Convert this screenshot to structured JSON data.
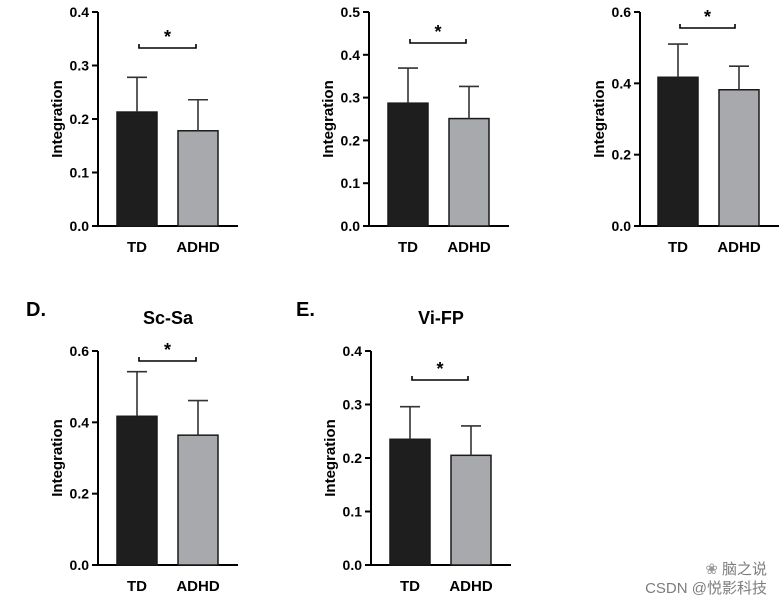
{
  "chart_data": [
    {
      "type": "bar",
      "panel": "",
      "title": "",
      "xlabel": "",
      "ylabel": "Integration",
      "categories": [
        "TD",
        "ADHD"
      ],
      "values": [
        0.213,
        0.178
      ],
      "errors": [
        0.065,
        0.058
      ],
      "ylim": [
        0,
        0.4
      ],
      "yticks": [
        "0.0",
        "0.1",
        "0.2",
        "0.3",
        "0.4"
      ],
      "significance": "*",
      "colors": [
        "#1e1e1e",
        "#a7a9ad"
      ]
    },
    {
      "type": "bar",
      "panel": "",
      "title": "",
      "xlabel": "",
      "ylabel": "Integration",
      "categories": [
        "TD",
        "ADHD"
      ],
      "values": [
        0.287,
        0.251
      ],
      "errors": [
        0.082,
        0.075
      ],
      "ylim": [
        0,
        0.5
      ],
      "yticks": [
        "0.0",
        "0.1",
        "0.2",
        "0.3",
        "0.4",
        "0.5"
      ],
      "significance": "*",
      "colors": [
        "#1e1e1e",
        "#a7a9ad"
      ]
    },
    {
      "type": "bar",
      "panel": "",
      "title": "",
      "xlabel": "",
      "ylabel": "Integration",
      "categories": [
        "TD",
        "ADHD"
      ],
      "values": [
        0.417,
        0.382
      ],
      "errors": [
        0.093,
        0.066
      ],
      "ylim": [
        0,
        0.6
      ],
      "yticks": [
        "0.0",
        "0.2",
        "0.4",
        "0.6"
      ],
      "significance": "*",
      "colors": [
        "#1e1e1e",
        "#a7a9ad"
      ]
    },
    {
      "type": "bar",
      "panel": "D.",
      "title": "Sc-Sa",
      "xlabel": "",
      "ylabel": "Integration",
      "categories": [
        "TD",
        "ADHD"
      ],
      "values": [
        0.417,
        0.364
      ],
      "errors": [
        0.125,
        0.097
      ],
      "ylim": [
        0,
        0.6
      ],
      "yticks": [
        "0.0",
        "0.2",
        "0.4",
        "0.6"
      ],
      "significance": "*",
      "colors": [
        "#1e1e1e",
        "#a7a9ad"
      ]
    },
    {
      "type": "bar",
      "panel": "E.",
      "title": "Vi-FP",
      "xlabel": "",
      "ylabel": "Integration",
      "categories": [
        "TD",
        "ADHD"
      ],
      "values": [
        0.235,
        0.205
      ],
      "errors": [
        0.061,
        0.055
      ],
      "ylim": [
        0,
        0.4
      ],
      "yticks": [
        "0.0",
        "0.1",
        "0.2",
        "0.3",
        "0.4"
      ],
      "significance": "*",
      "colors": [
        "#1e1e1e",
        "#a7a9ad"
      ]
    }
  ],
  "watermark": {
    "line1": "脑之说",
    "line2": "CSDN @悦影科技",
    "icon": "wechat-icon"
  }
}
